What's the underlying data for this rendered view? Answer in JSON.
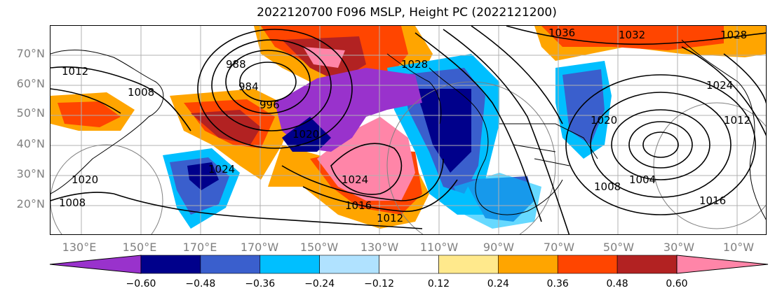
{
  "title": "2022120700 F096 MSLP, Height PC (2022121200)",
  "lat_labels": [
    "70°N",
    "60°N",
    "50°N",
    "40°N",
    "30°N",
    "20°N"
  ],
  "lon_labels": [
    "130°E",
    "150°E",
    "170°E",
    "170°W",
    "150°W",
    "130°W",
    "110°W",
    "90°W",
    "70°W",
    "50°W",
    "30°W",
    "10°W"
  ],
  "colorbar": {
    "ticks": [
      "−0.60",
      "−0.48",
      "−0.36",
      "−0.24",
      "−0.12",
      "0.12",
      "0.24",
      "0.36",
      "0.48",
      "0.60"
    ],
    "colors": [
      "#9932cc",
      "#00008b",
      "#3a5fcd",
      "#00bfff",
      "#b0e2ff",
      "#ffffff",
      "#ffe98c",
      "#ffa500",
      "#ff4500",
      "#b22222",
      "#ff85a8"
    ]
  },
  "map": {
    "projection_range": {
      "lon": [
        "120°E",
        "0°"
      ],
      "lat": [
        "10°N",
        "80°N"
      ]
    },
    "contour_labels": [
      "1012",
      "1008",
      "1008",
      "984",
      "988",
      "996",
      "1020",
      "1024",
      "1024",
      "1016",
      "1012",
      "1028",
      "1036",
      "1032",
      "1028",
      "1024",
      "1020",
      "1008",
      "1004",
      "1016",
      "1020",
      "1012"
    ],
    "colors": {
      "purple": "#9932cc",
      "navy": "#00008b",
      "blue": "#3a5fcd",
      "cyan": "#00bfff",
      "lightblue": "#b0e2ff",
      "yellow": "#ffe98c",
      "orange": "#ffa500",
      "redorange": "#ff4500",
      "firebrick": "#b22222",
      "pink": "#ff85a8"
    }
  }
}
